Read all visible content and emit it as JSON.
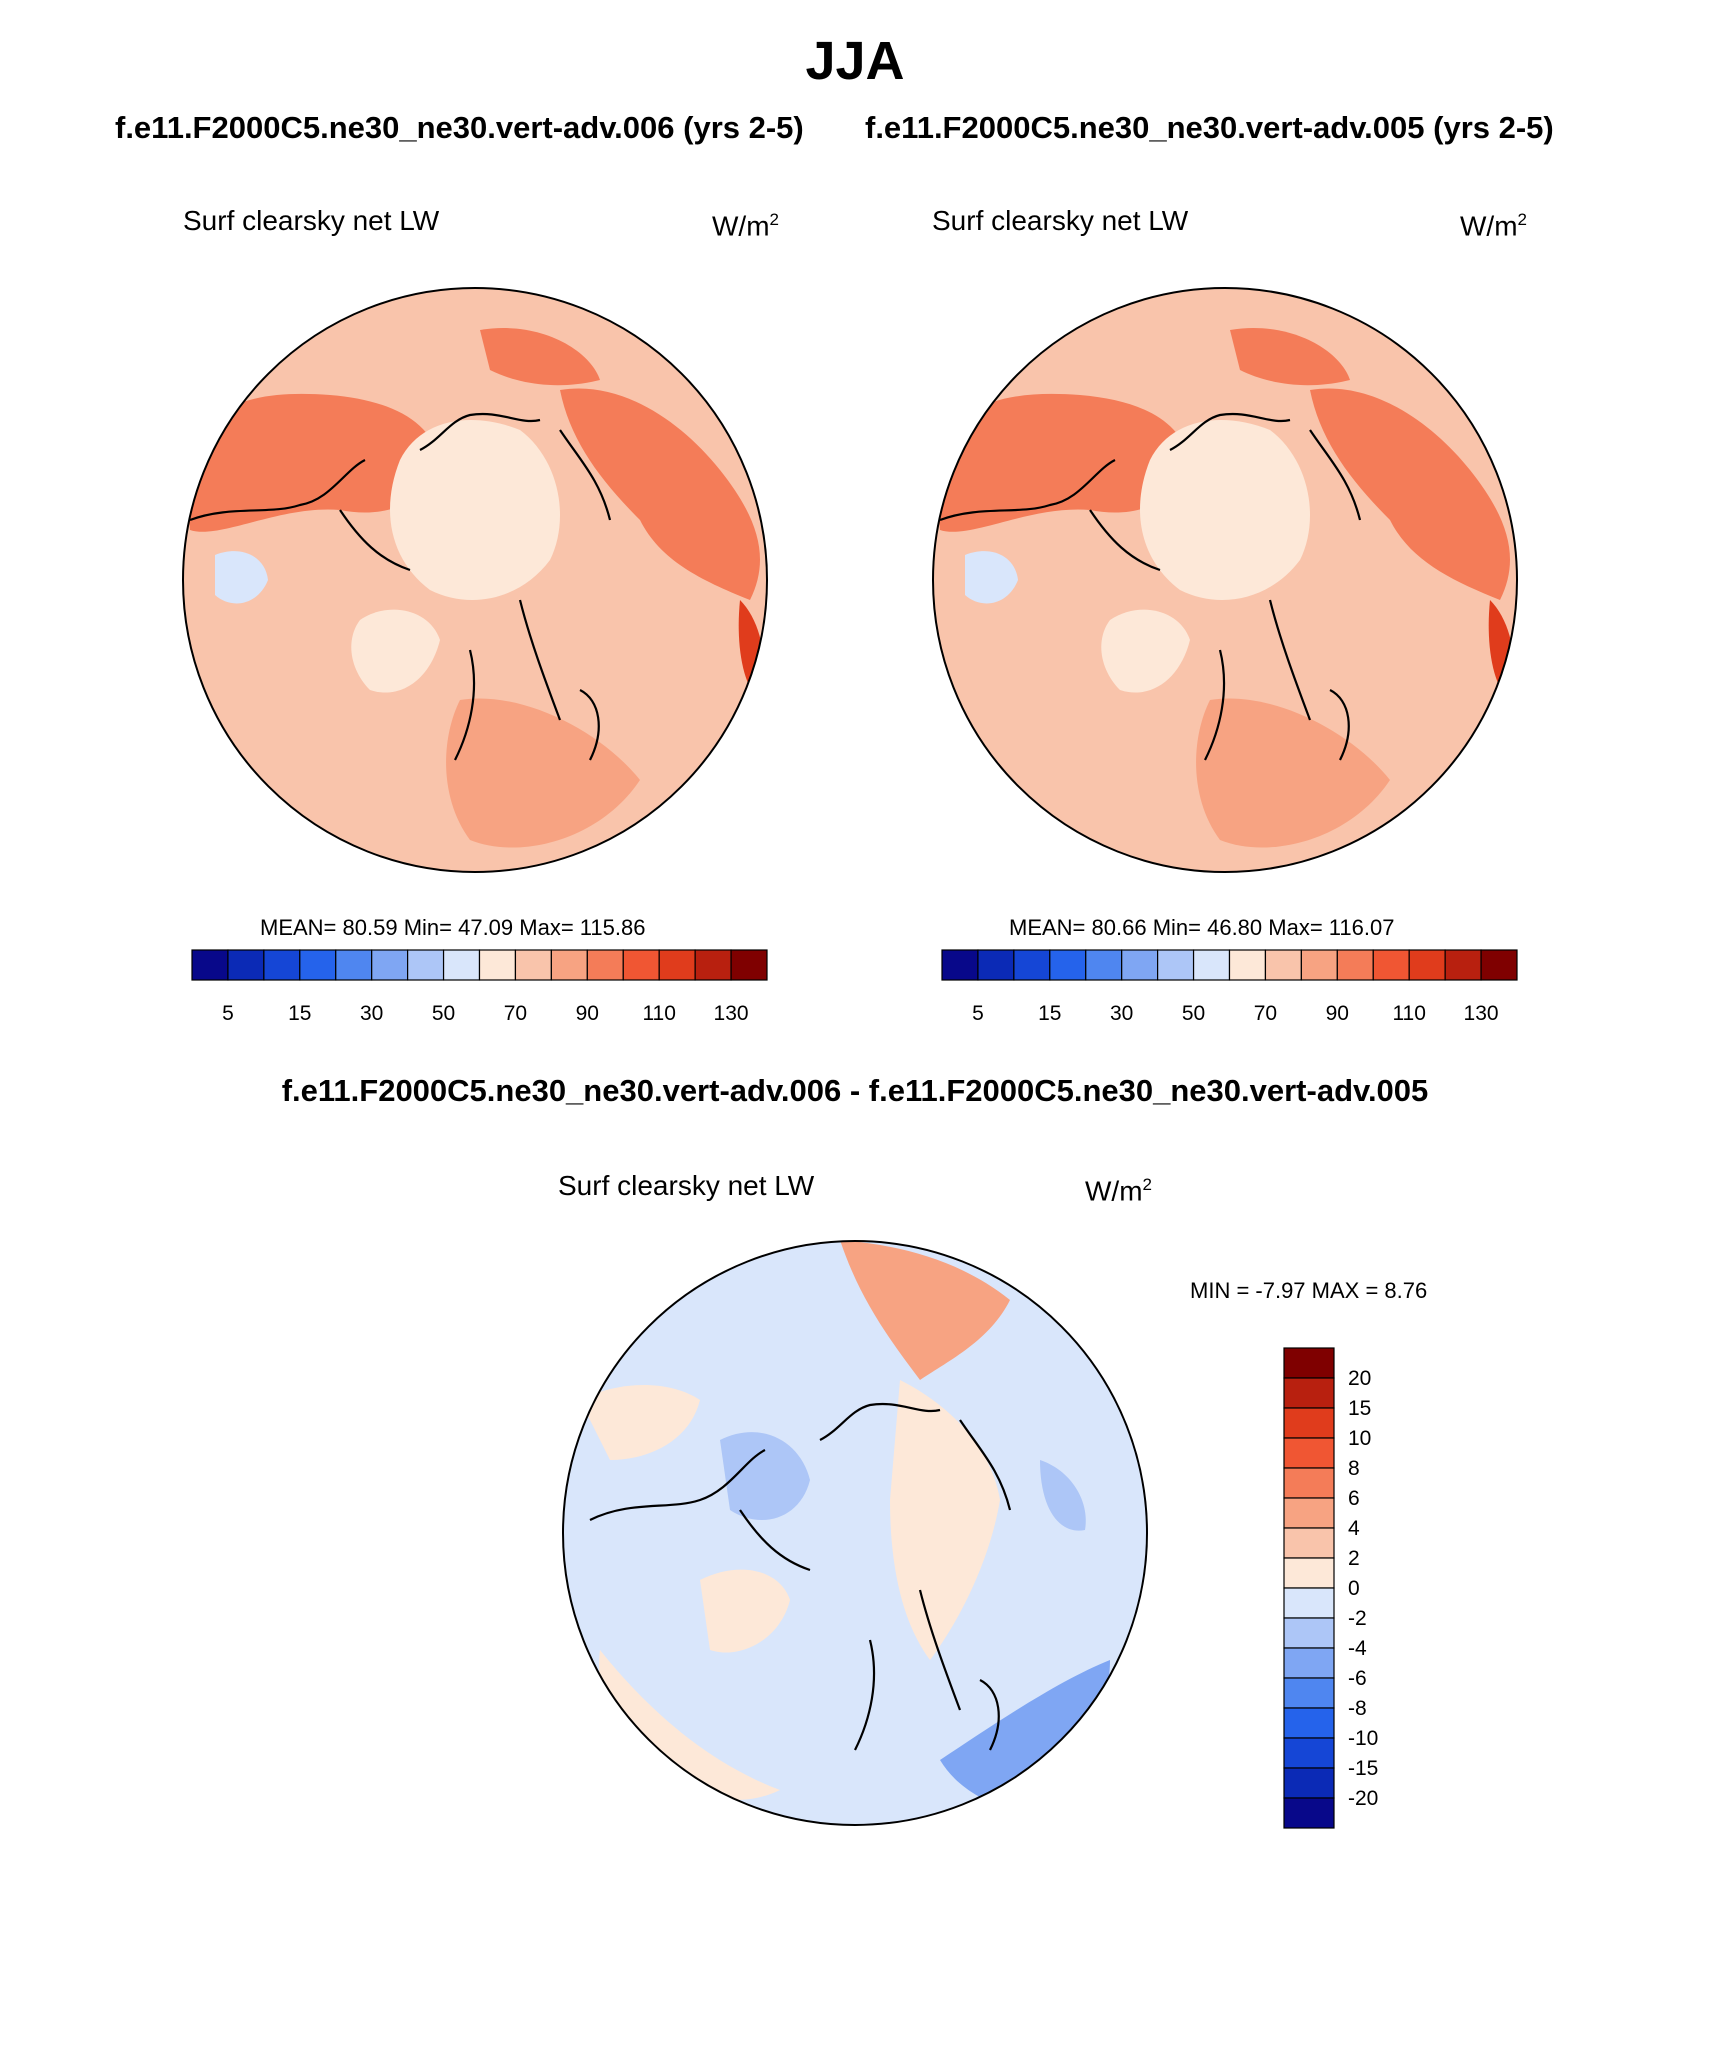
{
  "figure": {
    "title": "JJA",
    "left_case": "f.e11.F2000C5.ne30_ne30.vert-adv.006 (yrs 2-5)",
    "right_case": "f.e11.F2000C5.ne30_ne30.vert-adv.005 (yrs 2-5)",
    "diff_title": "f.e11.F2000C5.ne30_ne30.vert-adv.006 - f.e11.F2000C5.ne30_ne30.vert-adv.005"
  },
  "panels": {
    "left": {
      "variable": "Surf clearsky net LW",
      "units": "W/m",
      "units_exp": "2",
      "stats": "MEAN=  80.59  Min=  47.09  Max= 115.86"
    },
    "right": {
      "variable": "Surf clearsky net LW",
      "units": "W/m",
      "units_exp": "2",
      "stats": "MEAN=  80.66  Min=  46.80  Max= 116.07"
    },
    "diff": {
      "variable": "Surf clearsky net LW",
      "units": "W/m",
      "units_exp": "2",
      "stats": "MIN =  -7.97 MAX =   8.76"
    }
  },
  "colors": {
    "abs_scale": [
      "#08088a",
      "#0b2ab6",
      "#1546d6",
      "#2563eb",
      "#4f86f0",
      "#7fa6f3",
      "#adc6f7",
      "#d9e6fb",
      "#fde8d8",
      "#f9c4ab",
      "#f7a382",
      "#f47c58",
      "#f05633",
      "#e03c1c",
      "#b8200f",
      "#7f0000"
    ],
    "diff_scale": [
      "#7f0000",
      "#b8200f",
      "#e03c1c",
      "#f05633",
      "#f47c58",
      "#f7a382",
      "#f9c4ab",
      "#fde8d8",
      "#d9e6fb",
      "#adc6f7",
      "#7fa6f3",
      "#4f86f0",
      "#2563eb",
      "#1546d6",
      "#0b2ab6",
      "#08088a"
    ]
  },
  "chart_data": [
    {
      "type": "heatmap",
      "title": "Surf clearsky net LW",
      "subtitle": "f.e11.F2000C5.ne30_ne30.vert-adv.006 (yrs 2-5)",
      "projection": "north polar stereographic",
      "units": "W/m2",
      "mean": 80.59,
      "min": 47.09,
      "max": 115.86,
      "colorbar_levels": [
        5,
        10,
        15,
        20,
        30,
        40,
        50,
        60,
        70,
        80,
        90,
        100,
        110,
        120,
        130
      ],
      "colorbar_labels": [
        "5",
        "15",
        "30",
        "50",
        "70",
        "90",
        "110",
        "130"
      ]
    },
    {
      "type": "heatmap",
      "title": "Surf clearsky net LW",
      "subtitle": "f.e11.F2000C5.ne30_ne30.vert-adv.005 (yrs 2-5)",
      "projection": "north polar stereographic",
      "units": "W/m2",
      "mean": 80.66,
      "min": 46.8,
      "max": 116.07,
      "colorbar_levels": [
        5,
        10,
        15,
        20,
        30,
        40,
        50,
        60,
        70,
        80,
        90,
        100,
        110,
        120,
        130
      ],
      "colorbar_labels": [
        "5",
        "15",
        "30",
        "50",
        "70",
        "90",
        "110",
        "130"
      ]
    },
    {
      "type": "heatmap",
      "title": "Surf clearsky net LW",
      "subtitle": "f.e11.F2000C5.ne30_ne30.vert-adv.006 - f.e11.F2000C5.ne30_ne30.vert-adv.005",
      "projection": "north polar stereographic",
      "units": "W/m2",
      "min": -7.97,
      "max": 8.76,
      "colorbar_levels": [
        20,
        15,
        10,
        8,
        6,
        4,
        2,
        0,
        -2,
        -4,
        -6,
        -8,
        -10,
        -15,
        -20
      ],
      "colorbar_labels": [
        "20",
        "15",
        "10",
        "8",
        "6",
        "4",
        "2",
        "0",
        "-2",
        "-4",
        "-6",
        "-8",
        "-10",
        "-15",
        "-20"
      ]
    }
  ]
}
